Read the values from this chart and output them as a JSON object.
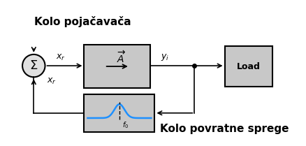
{
  "title": "Kolo pojačavača",
  "subtitle": "Kolo povratne sprege",
  "bg_color": "#ffffff",
  "box_fill": "#c8c8c8",
  "box_edge": "#000000",
  "title_fontsize": 11,
  "label_fontsize": 9,
  "load_label": "Load",
  "peak_color": "#1e90ff"
}
